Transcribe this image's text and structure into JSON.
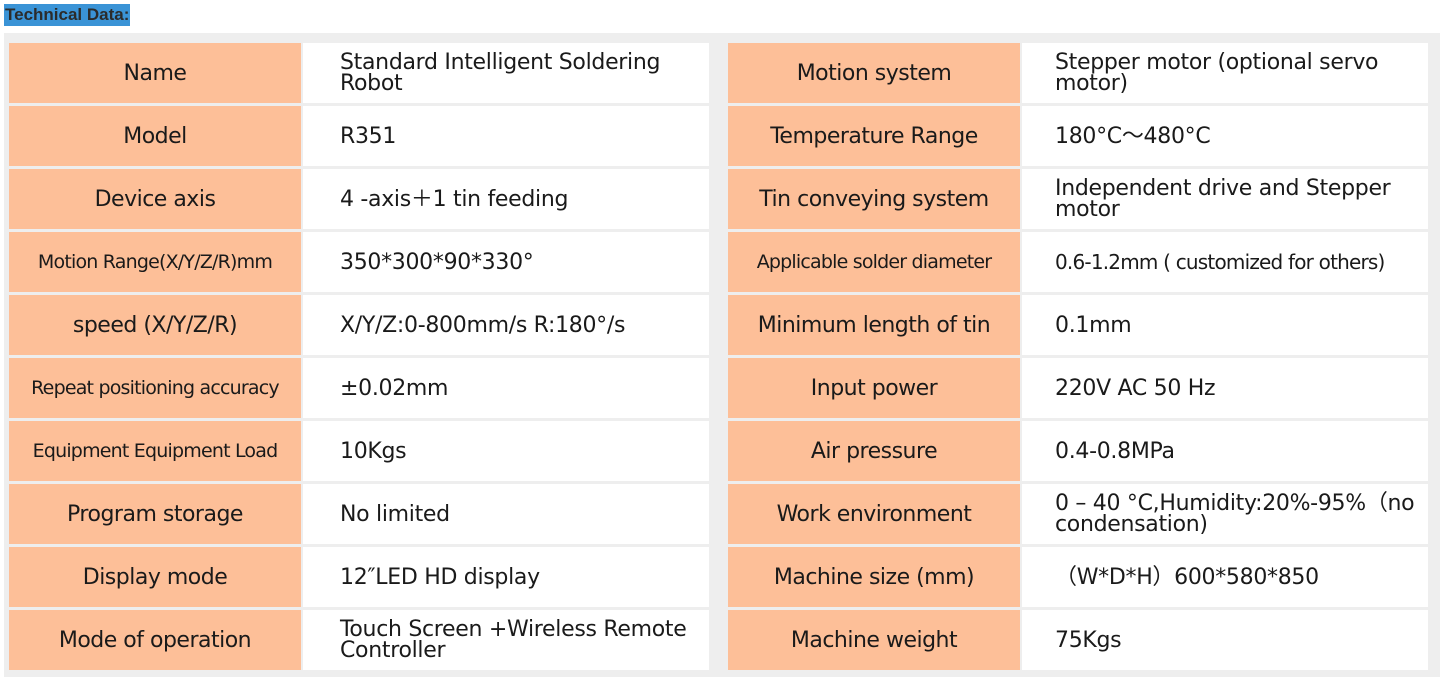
{
  "title": "Technical Data:",
  "left_rows": [
    {
      "label": "Name",
      "value": "Standard Intelligent Soldering Robot"
    },
    {
      "label": "Model",
      "value": "R351"
    },
    {
      "label": "Device axis",
      "value": "4 -axis＋1 tin feeding"
    },
    {
      "label": "Motion Range(X/Y/Z/R)mm",
      "value": "350*300*90*330°"
    },
    {
      "label": "speed (X/Y/Z/R)",
      "value": "X/Y/Z:0-800mm/s R:180°/s"
    },
    {
      "label": "Repeat positioning accuracy",
      "value": "±0.02mm"
    },
    {
      "label": "Equipment Equipment Load",
      "value": "10Kgs"
    },
    {
      "label": "Program storage",
      "value": "No limited"
    },
    {
      "label": "Display mode",
      "value": "12″LED HD display"
    },
    {
      "label": "Mode of operation",
      "value": "Touch Screen +Wireless Remote Controller"
    }
  ],
  "right_rows": [
    {
      "label": "Motion system",
      "value": "Stepper motor (optional servo motor)"
    },
    {
      "label": "Temperature Range",
      "value": "180°C～480°C"
    },
    {
      "label": "Tin conveying system",
      "value": "Independent drive and Stepper motor"
    },
    {
      "label": "Applicable solder diameter",
      "value": "0.6-1.2mm ( customized for others)"
    },
    {
      "label": "Minimum length of tin",
      "value": "0.1mm"
    },
    {
      "label": "Input power",
      "value": "220V AC 50 Hz"
    },
    {
      "label": "Air pressure",
      "value": "0.4-0.8MPa"
    },
    {
      "label": "Work environment",
      "value": "0 – 40 °C,Humidity:20%-95%（no condensation)"
    },
    {
      "label": "Machine size (mm)",
      "value": "（W*D*H）600*580*850"
    },
    {
      "label": "Machine weight",
      "value": "75Kgs"
    }
  ]
}
